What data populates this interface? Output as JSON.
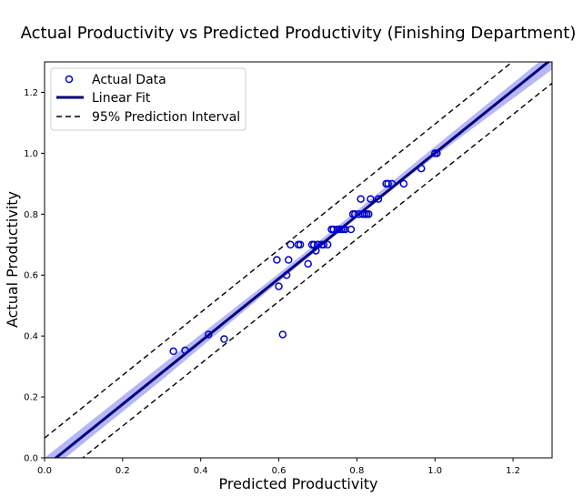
{
  "chart_data": {
    "type": "scatter",
    "title": "Actual Productivity vs Predicted Productivity (Finishing Department)",
    "xlabel": "Predicted Productivity",
    "ylabel": "Actual Productivity",
    "xlim": [
      0.0,
      1.3
    ],
    "ylim": [
      0.0,
      1.3
    ],
    "xticks": [
      "0.0",
      "0.2",
      "0.4",
      "0.6",
      "0.8",
      "1.0",
      "1.2"
    ],
    "yticks": [
      "0.0",
      "0.2",
      "0.4",
      "0.6",
      "0.8",
      "1.0",
      "1.2"
    ],
    "grid": false,
    "legend_position": "top-left",
    "colors": {
      "points": "#0000cc",
      "fit_line": "#00007f",
      "confidence_band": "#7b7bef",
      "prediction_interval": "#000000"
    },
    "series": [
      {
        "name": "Actual Data",
        "kind": "points",
        "x": [
          0.33,
          0.36,
          0.42,
          0.46,
          0.61,
          0.595,
          0.6,
          0.62,
          0.625,
          0.63,
          0.65,
          0.655,
          0.675,
          0.685,
          0.69,
          0.695,
          0.7,
          0.7,
          0.71,
          0.715,
          0.725,
          0.735,
          0.74,
          0.75,
          0.755,
          0.76,
          0.765,
          0.77,
          0.785,
          0.79,
          0.795,
          0.805,
          0.81,
          0.815,
          0.82,
          0.825,
          0.83,
          0.835,
          0.855,
          0.875,
          0.88,
          0.89,
          0.92,
          0.965,
          1.0,
          1.005
        ],
        "y": [
          0.35,
          0.353,
          0.405,
          0.39,
          0.405,
          0.65,
          0.563,
          0.6,
          0.65,
          0.7,
          0.7,
          0.7,
          0.637,
          0.7,
          0.7,
          0.68,
          0.7,
          0.7,
          0.7,
          0.7,
          0.7,
          0.75,
          0.75,
          0.75,
          0.75,
          0.75,
          0.75,
          0.75,
          0.75,
          0.8,
          0.8,
          0.8,
          0.85,
          0.8,
          0.8,
          0.8,
          0.8,
          0.85,
          0.85,
          0.9,
          0.9,
          0.9,
          0.9,
          0.95,
          1.0,
          1.0
        ]
      },
      {
        "name": "Linear Fit",
        "kind": "line",
        "x": [
          0.0,
          1.3
        ],
        "y": [
          -0.03,
          1.31
        ]
      },
      {
        "name": "95% Prediction Interval",
        "kind": "dashed",
        "upper": {
          "x": [
            0.0,
            1.3
          ],
          "y": [
            0.065,
            1.405
          ]
        },
        "lower": {
          "x": [
            0.0,
            1.3
          ],
          "y": [
            -0.1,
            1.23
          ]
        }
      }
    ],
    "confidence_band": {
      "x": [
        0.0,
        0.3,
        0.6,
        0.8,
        1.0,
        1.3
      ],
      "upper": [
        0.0,
        0.305,
        0.605,
        0.812,
        1.022,
        1.335
      ],
      "lower": [
        -0.055,
        0.255,
        0.578,
        0.79,
        0.99,
        1.275
      ]
    }
  }
}
